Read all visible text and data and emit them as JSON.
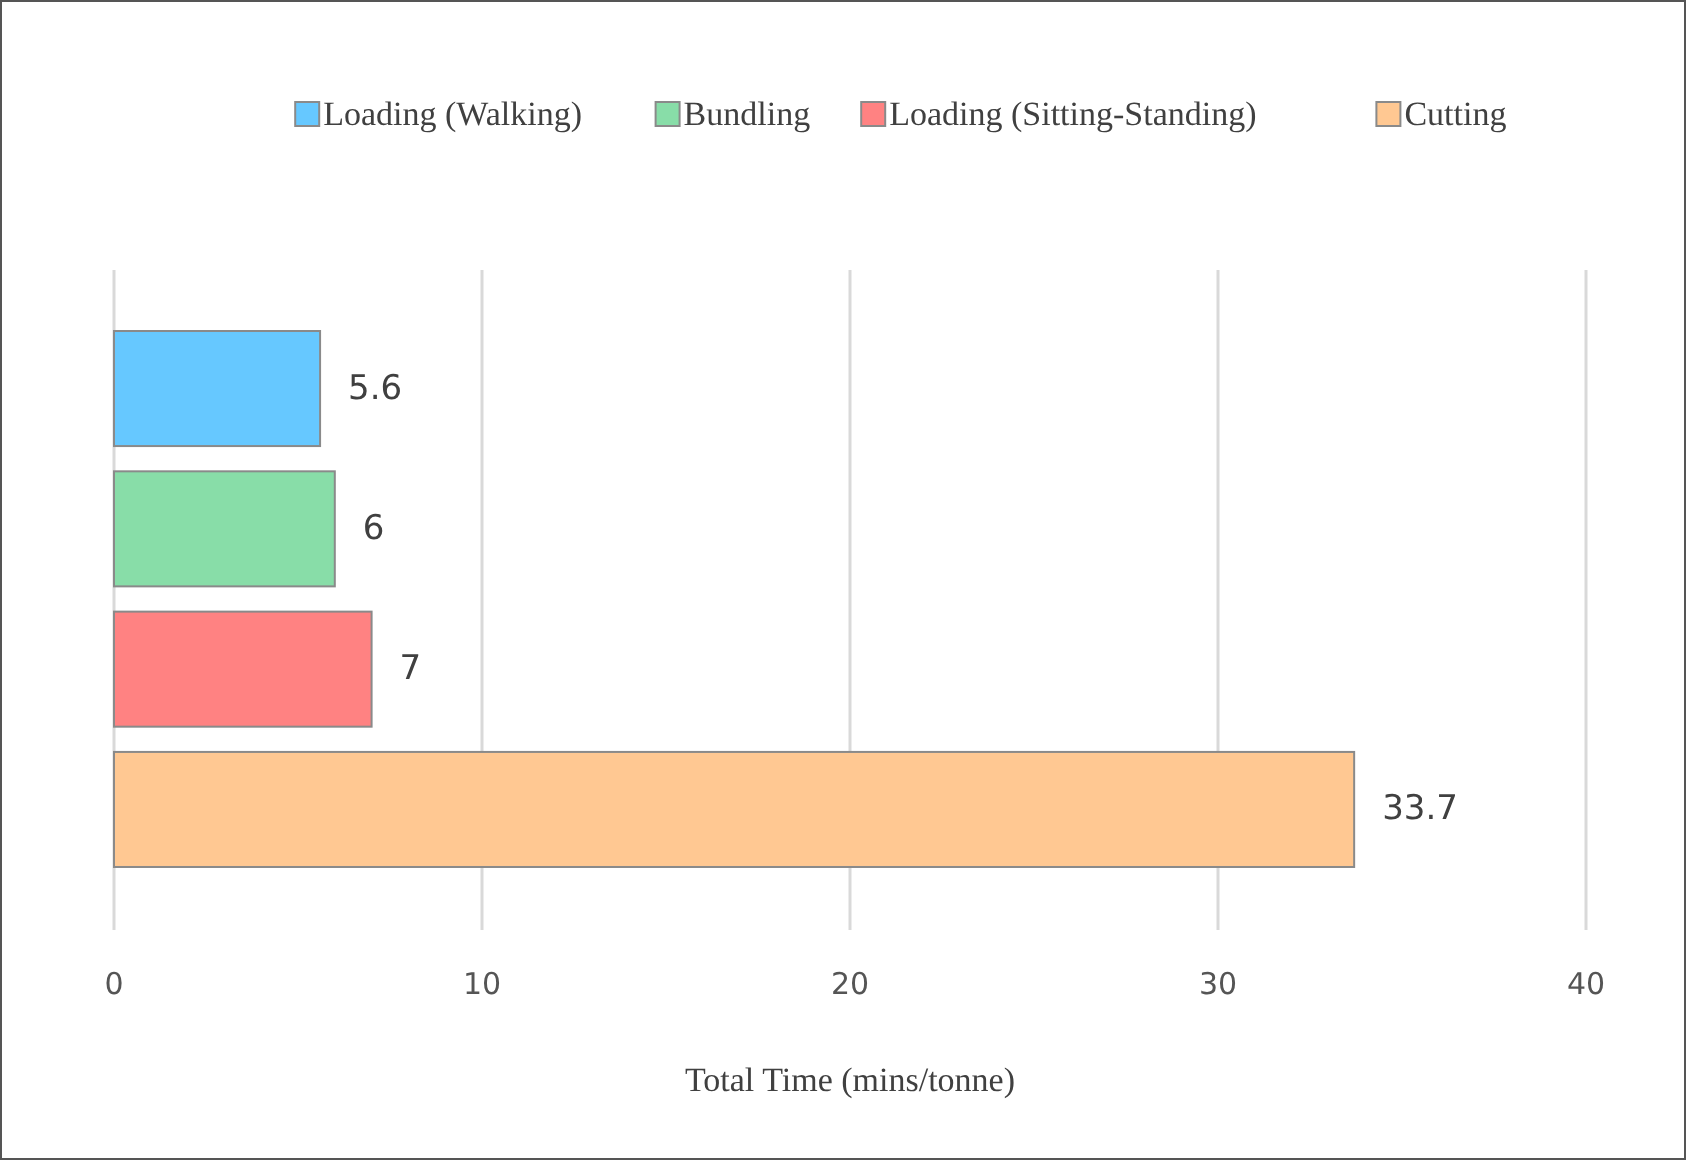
{
  "chart_data": {
    "type": "bar",
    "orientation": "horizontal",
    "xlabel": "Total Time  (mins/tonne)",
    "categories": [
      null,
      null,
      null,
      null
    ],
    "series": [
      {
        "name": "Loading (Walking)",
        "color": "#66c8ff",
        "values": [
          5.6,
          null,
          null,
          null
        ]
      },
      {
        "name": "Bundling",
        "color": "#88dda8",
        "values": [
          null,
          6,
          null,
          null
        ]
      },
      {
        "name": "Loading (Sitting-Standing)",
        "color": "#ff8282",
        "values": [
          null,
          null,
          7,
          null
        ]
      },
      {
        "name": "Cutting",
        "color": "#ffc892",
        "values": [
          null,
          null,
          null,
          33.7
        ]
      }
    ],
    "value_labels": [
      [
        "5.6",
        null,
        null,
        null
      ],
      [
        null,
        "6",
        null,
        null
      ],
      [
        null,
        null,
        "7",
        null
      ],
      [
        null,
        null,
        null,
        "33.7"
      ]
    ],
    "xlim": [
      0,
      40
    ],
    "xticks": [
      0,
      10,
      20,
      30,
      40
    ],
    "grid": "x",
    "legend": "top"
  }
}
